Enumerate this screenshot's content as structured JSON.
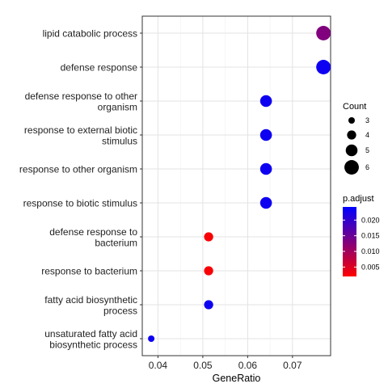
{
  "chart_data": {
    "type": "scatter",
    "xlabel": "GeneRatio",
    "xlim": [
      0.0365,
      0.0785
    ],
    "xticks": [
      "0.04",
      "0.05",
      "0.06",
      "0.07"
    ],
    "xtick_values": [
      0.04,
      0.05,
      0.06,
      0.07
    ],
    "grid": true,
    "points": [
      {
        "term": "lipid catabolic process",
        "gene_ratio": 0.0769,
        "count": 6,
        "p_adjust": 0.013
      },
      {
        "term": "defense response",
        "gene_ratio": 0.0769,
        "count": 6,
        "p_adjust": 0.023
      },
      {
        "term": "defense response to other organism",
        "gene_ratio": 0.0641,
        "count": 5,
        "p_adjust": 0.023
      },
      {
        "term": "response to external biotic stimulus",
        "gene_ratio": 0.0641,
        "count": 5,
        "p_adjust": 0.023
      },
      {
        "term": "response to other organism",
        "gene_ratio": 0.0641,
        "count": 5,
        "p_adjust": 0.023
      },
      {
        "term": "response to biotic stimulus",
        "gene_ratio": 0.0641,
        "count": 5,
        "p_adjust": 0.023
      },
      {
        "term": "defense response to bacterium",
        "gene_ratio": 0.0513,
        "count": 4,
        "p_adjust": 0.0025
      },
      {
        "term": "response to bacterium",
        "gene_ratio": 0.0513,
        "count": 4,
        "p_adjust": 0.0025
      },
      {
        "term": "fatty acid biosynthetic process",
        "gene_ratio": 0.0513,
        "count": 4,
        "p_adjust": 0.023
      },
      {
        "term": "unsaturated fatty acid biosynthetic process",
        "gene_ratio": 0.0385,
        "count": 3,
        "p_adjust": 0.023
      }
    ],
    "legend_count": {
      "title": "Count",
      "values": [
        3,
        4,
        5,
        6
      ],
      "labels": [
        "3",
        "4",
        "5",
        "6"
      ]
    },
    "legend_color": {
      "title": "p.adjust",
      "min": 0.002,
      "max": 0.0242,
      "ticks": [
        0.02,
        0.015,
        0.01,
        0.005
      ],
      "labels": [
        "0.020",
        "0.015",
        "0.010",
        "0.005"
      ],
      "low_color": "#FF0000",
      "high_color": "#0000FF"
    },
    "legend_placement": "right"
  }
}
